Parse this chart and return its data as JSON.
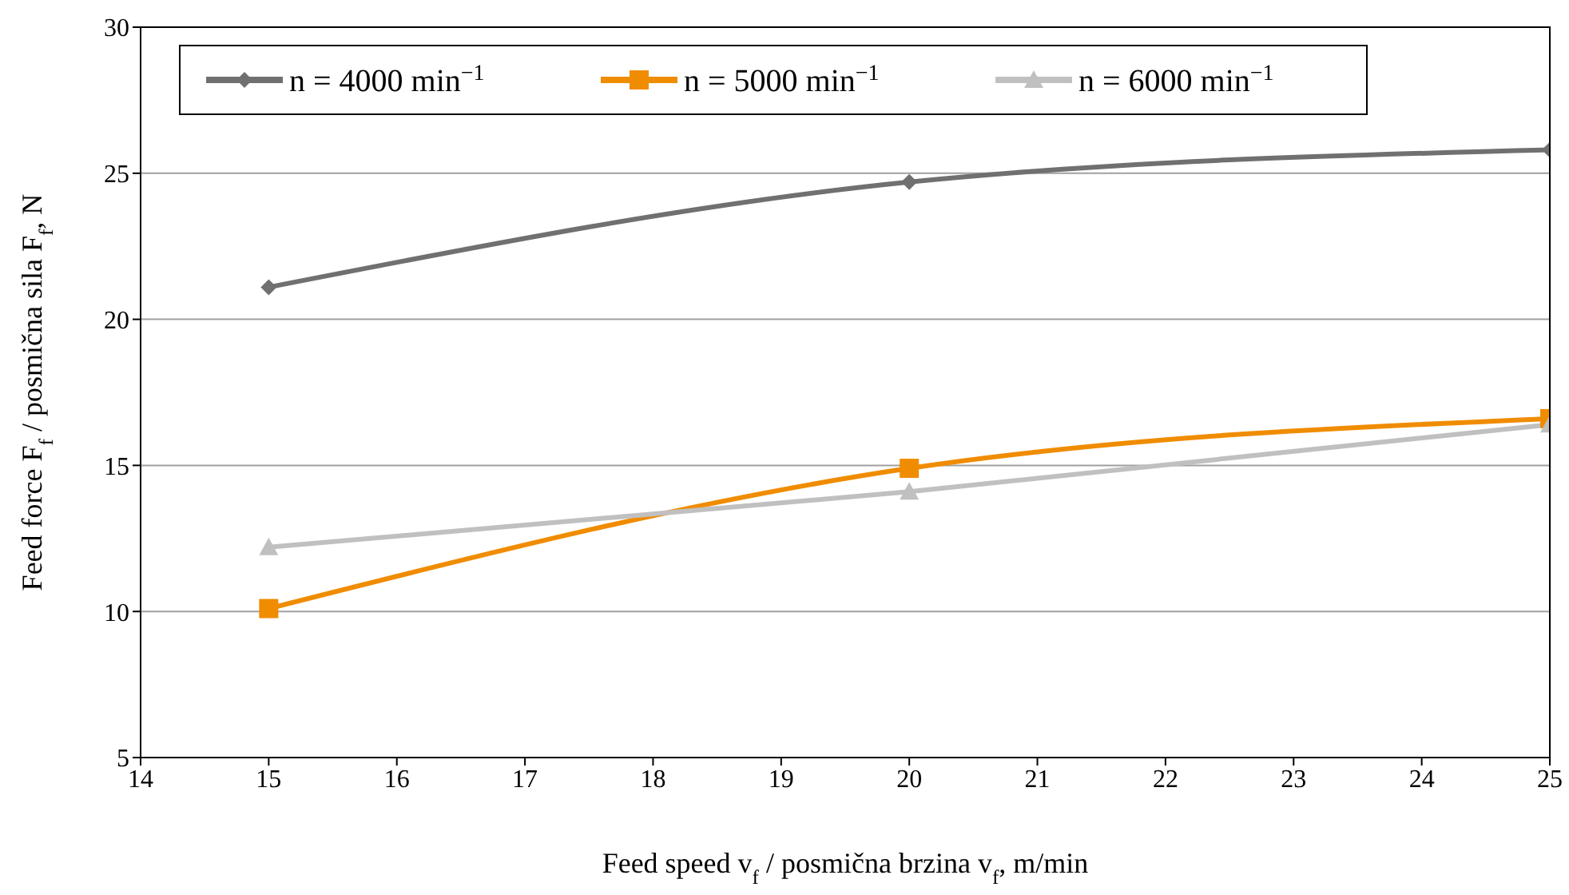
{
  "chart_data": {
    "type": "line",
    "xlabel": "Feed speed v$_{f}$ / posmična brzina v$_{f}$, m/min",
    "ylabel": "Feed force F$_{f}$ / posmična sila F$_{f}$, N",
    "x": [
      15,
      20,
      25
    ],
    "xlim": [
      14,
      25
    ],
    "xticks": [
      14,
      15,
      16,
      17,
      18,
      19,
      20,
      21,
      22,
      23,
      24,
      25
    ],
    "ylim": [
      5,
      30
    ],
    "yticks": [
      5,
      10,
      15,
      20,
      25,
      30
    ],
    "grid": "y",
    "legend": "top",
    "series": [
      {
        "name": "n = 4000 min$^{−1}$",
        "color": "#707070",
        "marker": "diamond",
        "values": [
          21.1,
          24.7,
          25.8
        ]
      },
      {
        "name": "n = 5000 min$^{−1}$",
        "color": "#f08c00",
        "marker": "square",
        "values": [
          10.1,
          14.9,
          16.6
        ]
      },
      {
        "name": "n = 6000 min$^{−1}$",
        "color": "#c0c0c0",
        "marker": "triangle",
        "values": [
          12.2,
          14.1,
          16.4
        ]
      }
    ]
  }
}
